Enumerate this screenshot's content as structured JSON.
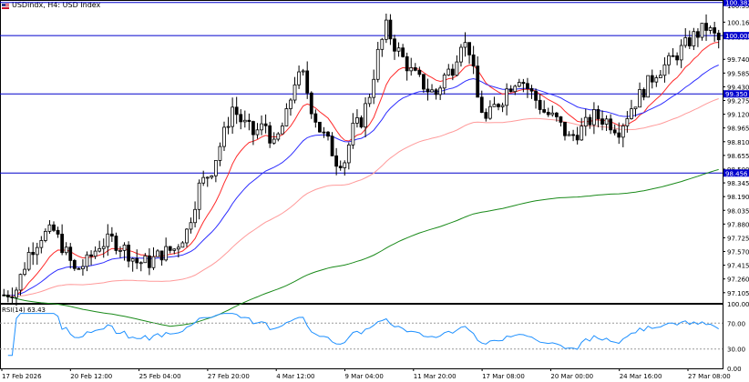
{
  "header": {
    "symbol": "USDindx",
    "timeframe": "H4",
    "description": "USD Index",
    "title_text": "USDindx, H4:  USD Index",
    "flag_icon": "us-flag-icon"
  },
  "rsi": {
    "label": "RSI(14) 63.43",
    "period": 14,
    "current": 63.43,
    "levels": [
      30,
      70
    ],
    "ticks": [
      "100.00",
      "70.00",
      "30.00",
      "0.00"
    ],
    "color": "#1e90ff"
  },
  "price_axis": {
    "ticks": [
      "100.350",
      "100.160",
      "99.995",
      "99.740",
      "99.585",
      "99.430",
      "99.275",
      "99.120",
      "98.965",
      "98.810",
      "98.655",
      "98.500",
      "98.345",
      "98.190",
      "98.035",
      "97.880",
      "97.725",
      "97.570",
      "97.415",
      "97.260",
      "97.105"
    ],
    "range": [
      96.99,
      100.41
    ]
  },
  "levels": [
    {
      "value": 100.382,
      "label": "100.382",
      "color": "#0000cc"
    },
    {
      "value": 100.008,
      "label": "100.008",
      "color": "#0000cc"
    },
    {
      "value": 99.35,
      "label": "99.350",
      "color": "#0000cc"
    },
    {
      "value": 98.456,
      "label": "98.456",
      "color": "#0000cc"
    }
  ],
  "time_axis": {
    "labels": [
      "17 Feb 2026",
      "20 Feb 12:00",
      "25 Feb 04:00",
      "27 Feb 20:00",
      "4 Mar 12:00",
      "9 Mar 04:00",
      "11 Mar 20:00",
      "17 Mar 08:00",
      "20 Mar 00:00",
      "24 Mar 16:00",
      "27 Mar 08:00"
    ]
  },
  "colors": {
    "bull": "#ffffff",
    "bear": "#000000",
    "wick": "#000000",
    "ma_fast": "#ff2a2a",
    "ma_mid": "#2e2eff",
    "ma_slow": "#ff9a9a",
    "ma_long": "#1a8a1a",
    "grid_label": "#000000"
  },
  "chart_data": {
    "type": "candlestick",
    "title": "USDindx, H4:  USD Index",
    "x_count": 120,
    "key_points": [
      [
        0,
        97.08
      ],
      [
        3,
        97.15
      ],
      [
        6,
        97.55
      ],
      [
        9,
        97.75
      ],
      [
        12,
        97.8
      ],
      [
        15,
        97.55
      ],
      [
        17,
        97.35
      ],
      [
        20,
        97.45
      ],
      [
        23,
        97.65
      ],
      [
        26,
        97.7
      ],
      [
        29,
        97.6
      ],
      [
        32,
        97.45
      ],
      [
        35,
        97.45
      ],
      [
        38,
        97.55
      ],
      [
        41,
        97.6
      ],
      [
        44,
        97.8
      ],
      [
        47,
        98.3
      ],
      [
        50,
        98.5
      ],
      [
        53,
        98.9
      ],
      [
        55,
        99.2
      ],
      [
        57,
        99.05
      ],
      [
        60,
        98.9
      ],
      [
        63,
        99.0
      ],
      [
        65,
        98.75
      ],
      [
        68,
        99.1
      ],
      [
        70,
        99.5
      ],
      [
        72,
        99.55
      ],
      [
        74,
        99.2
      ],
      [
        76,
        98.95
      ],
      [
        78,
        98.8
      ],
      [
        80,
        98.6
      ],
      [
        82,
        98.6
      ],
      [
        84,
        98.95
      ],
      [
        86,
        99.05
      ],
      [
        88,
        99.35
      ],
      [
        90,
        99.8
      ],
      [
        92,
        100.1
      ],
      [
        94,
        99.9
      ],
      [
        96,
        99.75
      ],
      [
        98,
        99.6
      ],
      [
        100,
        99.5
      ],
      [
        102,
        99.4
      ],
      [
        104,
        99.35
      ],
      [
        106,
        99.55
      ],
      [
        108,
        99.65
      ],
      [
        110,
        99.95
      ],
      [
        112,
        99.85
      ],
      [
        114,
        99.3
      ],
      [
        116,
        99.05
      ],
      [
        118,
        99.2
      ],
      [
        120,
        99.3
      ]
    ],
    "tail_points": [
      [
        121,
        99.4
      ],
      [
        124,
        99.55
      ],
      [
        127,
        99.35
      ],
      [
        130,
        99.15
      ],
      [
        133,
        99.05
      ],
      [
        136,
        98.85
      ],
      [
        139,
        98.95
      ],
      [
        142,
        99.1
      ],
      [
        145,
        99.05
      ],
      [
        148,
        98.95
      ],
      [
        151,
        99.2
      ],
      [
        154,
        99.4
      ],
      [
        157,
        99.6
      ],
      [
        160,
        99.7
      ],
      [
        163,
        99.85
      ],
      [
        166,
        100.0
      ],
      [
        169,
        100.1
      ],
      [
        172,
        99.95
      ]
    ],
    "ma_periods": [
      20,
      50,
      100,
      200
    ],
    "ylim": [
      96.99,
      100.41
    ]
  }
}
